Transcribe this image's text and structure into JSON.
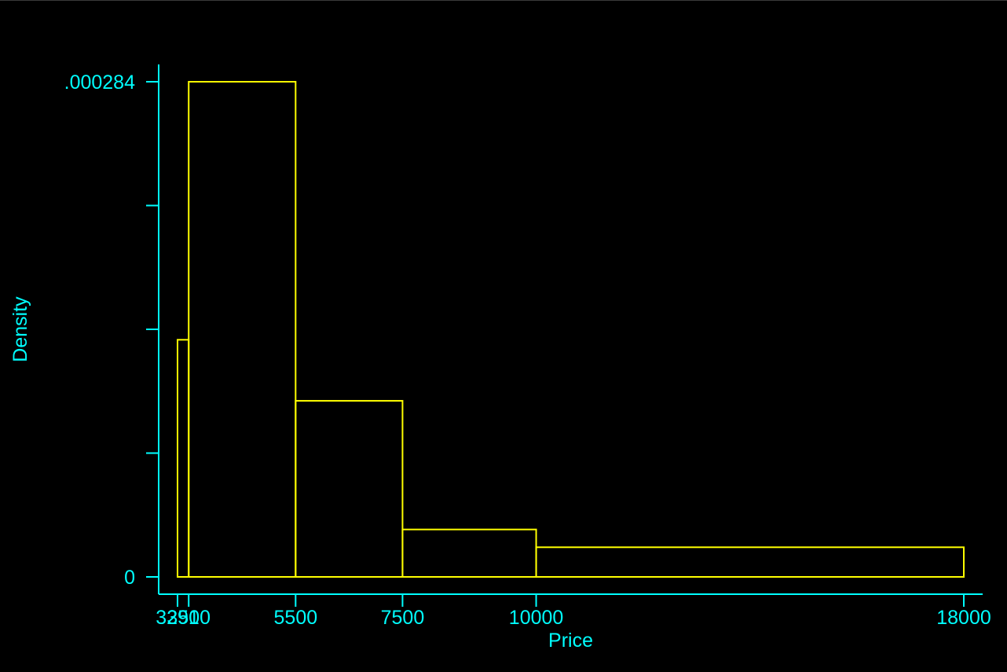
{
  "chart_data": {
    "type": "bar",
    "title": "",
    "xlabel": "Price",
    "ylabel": "Density",
    "bins": [
      {
        "x0": 3291,
        "x1": 3500,
        "density": 0.000136
      },
      {
        "x0": 3500,
        "x1": 5500,
        "density": 0.000284
      },
      {
        "x0": 5500,
        "x1": 7500,
        "density": 0.000101
      },
      {
        "x0": 7500,
        "x1": 10000,
        "density": 2.72e-05
      },
      {
        "x0": 10000,
        "x1": 18000,
        "density": 1.7e-05
      }
    ],
    "x_ticks": [
      "3291",
      "3500",
      "5500",
      "7500",
      "10000",
      "18000"
    ],
    "x_tick_values": [
      3291,
      3500,
      5500,
      7500,
      10000,
      18000
    ],
    "y_tick_labels": [
      {
        "value": 0,
        "label": "0"
      },
      {
        "value": 0.000284,
        "label": ".000284"
      }
    ],
    "y_minor_ticks": [
      7.1e-05,
      0.000142,
      0.000213
    ],
    "xlim": [
      3291,
      18000
    ],
    "ylim": [
      0,
      0.000284
    ],
    "grid": false,
    "legend": "none",
    "colors": {
      "background": "#000000",
      "axis": "#00ffff",
      "bar_outline": "#ffff00"
    }
  }
}
